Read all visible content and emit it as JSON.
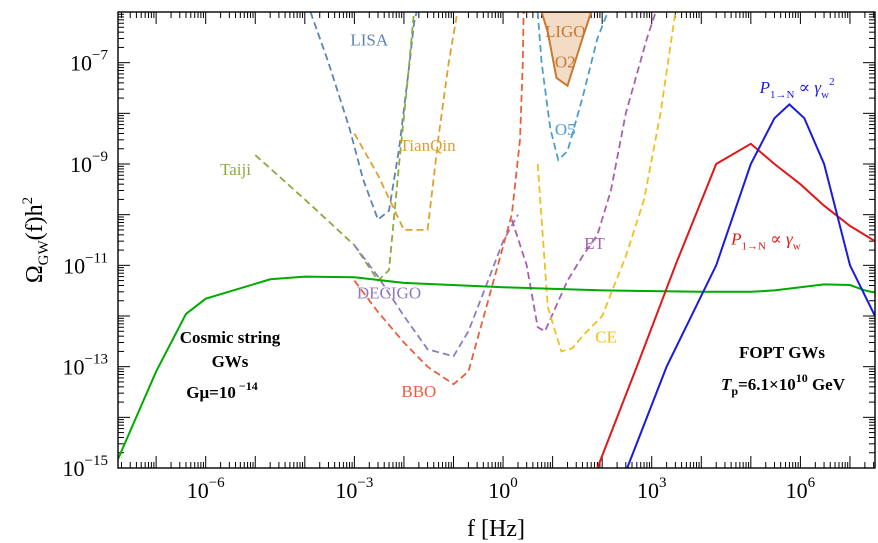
{
  "chart_data": {
    "type": "line",
    "xlabel": "f [Hz]",
    "ylabel_main": "Ω",
    "ylabel_sub": "GW",
    "ylabel_tail": "(f)h",
    "ylabel_sup": "2",
    "x_scale": "log",
    "y_scale": "log",
    "xlim": [
      1.7e-08,
      32000000.0
    ],
    "ylim": [
      1e-15,
      1e-06
    ],
    "x_ticks": [
      {
        "value": 1e-06,
        "base": "10",
        "exp": "−6"
      },
      {
        "value": 0.001,
        "base": "10",
        "exp": "−3"
      },
      {
        "value": 1,
        "base": "10",
        "exp": "0"
      },
      {
        "value": 1000.0,
        "base": "10",
        "exp": "3"
      },
      {
        "value": 1000000.0,
        "base": "10",
        "exp": "6"
      }
    ],
    "y_ticks": [
      {
        "value": 1e-07,
        "base": "10",
        "exp": "−7"
      },
      {
        "value": 1e-09,
        "base": "10",
        "exp": "−9"
      },
      {
        "value": 1e-11,
        "base": "10",
        "exp": "−11"
      },
      {
        "value": 1e-13,
        "base": "10",
        "exp": "−13"
      },
      {
        "value": 1e-15,
        "base": "10",
        "exp": "−15"
      }
    ],
    "grid": false,
    "series": [
      {
        "name": "LISA",
        "color": "#5b84b1",
        "dash": true,
        "label_pos": [
          0.002,
          2.2e-07
        ],
        "points": [
          [
            0.00013,
            1e-06
          ],
          [
            0.0003,
            1e-07
          ],
          [
            0.0008,
            5e-09
          ],
          [
            0.0015,
            5e-10
          ],
          [
            0.003,
            8e-11
          ],
          [
            0.005,
            1.2e-10
          ],
          [
            0.008,
            2e-09
          ],
          [
            0.013,
            1e-07
          ],
          [
            0.016,
            6e-07
          ],
          [
            0.018,
            1e-06
          ]
        ]
      },
      {
        "name": "TianQin",
        "color": "#e0a030",
        "dash": true,
        "label_pos": [
          0.03,
          1.8e-09
        ],
        "points": [
          [
            0.001,
            4e-09
          ],
          [
            0.003,
            6e-10
          ],
          [
            0.01,
            5e-11
          ],
          [
            0.03,
            5e-11
          ],
          [
            0.05,
            3.5e-09
          ],
          [
            0.08,
            1e-07
          ],
          [
            0.12,
            1e-06
          ]
        ]
      },
      {
        "name": "Taiji",
        "color": "#8cab3c",
        "dash": true,
        "label_pos": [
          4e-06,
          6e-10
        ],
        "points": [
          [
            1e-05,
            1.5e-09
          ],
          [
            0.0001,
            2e-10
          ],
          [
            0.001,
            2.5e-11
          ],
          [
            0.003,
            5e-12
          ],
          [
            0.005,
            8e-12
          ],
          [
            0.008,
            1e-09
          ],
          [
            0.012,
            5e-08
          ],
          [
            0.016,
            1e-06
          ]
        ]
      },
      {
        "name": "DECIGO",
        "color": "#8f7cc0",
        "dash": true,
        "label_pos": [
          0.005,
          2.2e-12
        ],
        "points": [
          [
            0.001,
            2.5e-11
          ],
          [
            0.003,
            6e-12
          ],
          [
            0.01,
            1e-12
          ],
          [
            0.03,
            2.2e-13
          ],
          [
            0.1,
            1.6e-13
          ],
          [
            0.2,
            5e-13
          ],
          [
            0.5,
            5e-12
          ],
          [
            1,
            3e-11
          ],
          [
            2,
            1e-10
          ]
        ]
      },
      {
        "name": "BBO",
        "color": "#e8603a",
        "dash": true,
        "label_pos": [
          0.02,
          2.5e-14
        ],
        "points": [
          [
            0.001,
            5e-12
          ],
          [
            0.003,
            1.2e-12
          ],
          [
            0.01,
            3e-13
          ],
          [
            0.03,
            1e-13
          ],
          [
            0.1,
            4.5e-14
          ],
          [
            0.2,
            8e-14
          ],
          [
            0.5,
            2e-12
          ],
          [
            1.5,
            1e-10
          ],
          [
            2.2,
            3e-09
          ],
          [
            2.5,
            1e-07
          ],
          [
            2.6,
            1e-06
          ]
        ]
      },
      {
        "name": "ET",
        "color": "#a85fb0",
        "dash": true,
        "label_pos": [
          70,
          2.1e-11
        ],
        "points": [
          [
            1.5,
            8e-11
          ],
          [
            3,
            1e-11
          ],
          [
            5,
            6e-13
          ],
          [
            7,
            5e-13
          ],
          [
            20,
            5e-12
          ],
          [
            40,
            1.5e-11
          ],
          [
            80,
            4e-11
          ],
          [
            150,
            3e-10
          ],
          [
            300,
            1e-08
          ],
          [
            800,
            3e-07
          ],
          [
            1200,
            1e-06
          ]
        ]
      },
      {
        "name": "CE",
        "color": "#f0c020",
        "dash": true,
        "label_pos": [
          120,
          3e-13
        ],
        "points": [
          [
            5,
            1e-09
          ],
          [
            8,
            1.5e-12
          ],
          [
            15,
            2e-13
          ],
          [
            25,
            2.3e-13
          ],
          [
            40,
            4e-13
          ],
          [
            100,
            1e-12
          ],
          [
            300,
            1.5e-11
          ],
          [
            700,
            2e-10
          ],
          [
            1500,
            1e-08
          ],
          [
            3000,
            1e-06
          ]
        ]
      },
      {
        "name": "O5",
        "color": "#4e9ec8",
        "dash": true,
        "label_pos": [
          18,
          3.7e-09
        ],
        "points": [
          [
            5,
            1e-06
          ],
          [
            6,
            1e-07
          ],
          [
            9,
            5e-09
          ],
          [
            13,
            1.2e-09
          ],
          [
            20,
            1.8e-09
          ],
          [
            40,
            2e-08
          ],
          [
            80,
            3e-07
          ],
          [
            130,
            1e-06
          ]
        ]
      }
    ],
    "ligo_o2": {
      "name_line1": "LIGO",
      "name_line2": "O2",
      "edge_color": "#c87830",
      "fill_color": "#f2dcc6",
      "points": [
        [
          6,
          1e-06
        ],
        [
          8,
          4e-07
        ],
        [
          12,
          5e-08
        ],
        [
          20,
          3.5e-08
        ],
        [
          40,
          3e-07
        ],
        [
          60,
          1e-06
        ]
      ]
    },
    "cosmic_string": {
      "color": "#00aa00",
      "label_line1": "Cosmic string",
      "label_line2": "GWs",
      "label_line3": "Gμ=10",
      "label_exp": " −14",
      "points": [
        [
          1.7e-08,
          1.5e-15
        ],
        [
          1e-07,
          8e-14
        ],
        [
          4e-07,
          1.1e-12
        ],
        [
          1e-06,
          2.2e-12
        ],
        [
          2e-05,
          5.3e-12
        ],
        [
          0.0001,
          6e-12
        ],
        [
          0.001,
          5.8e-12
        ],
        [
          0.01,
          4.5e-12
        ],
        [
          1,
          3.7e-12
        ],
        [
          100.0,
          3.2e-12
        ],
        [
          10000.0,
          3e-12
        ],
        [
          100000.0,
          3e-12
        ],
        [
          300000.0,
          3.2e-12
        ],
        [
          1000000.0,
          3.7e-12
        ],
        [
          3000000.0,
          4.2e-12
        ],
        [
          10000000.0,
          4.1e-12
        ],
        [
          20000000.0,
          3.2e-12
        ],
        [
          32000000.0,
          2.9e-12
        ]
      ]
    },
    "fopt_red": {
      "color": "#e01818",
      "label": "P",
      "label_sub": "1→N",
      "label_rest": " ∝ γ",
      "label_rest_sub": "w",
      "label_pos": [
        40000.0,
        2.6e-11
      ],
      "points": [
        [
          80,
          1e-15
        ],
        [
          500,
          1e-13
        ],
        [
          3000,
          1e-11
        ],
        [
          20000.0,
          1e-09
        ],
        [
          100000.0,
          2.5e-09
        ],
        [
          300000.0,
          1e-09
        ],
        [
          1000000.0,
          4e-10
        ],
        [
          3000000.0,
          1.5e-10
        ],
        [
          10000000.0,
          6e-11
        ],
        [
          32000000.0,
          3e-11
        ]
      ]
    },
    "fopt_blue": {
      "color": "#1a1ae0",
      "label": "P",
      "label_sub": "1→N",
      "label_rest": " ∝ γ",
      "label_rest_sub": "w",
      "label_sup": "2",
      "label_pos": [
        150000.0,
        2.5e-08
      ],
      "points": [
        [
          320,
          1e-15
        ],
        [
          2000.0,
          1e-13
        ],
        [
          20000.0,
          1e-11
        ],
        [
          100000.0,
          1e-09
        ],
        [
          300000.0,
          8e-09
        ],
        [
          600000.0,
          1.5e-08
        ],
        [
          1200000.0,
          8e-09
        ],
        [
          3000000.0,
          1e-09
        ],
        [
          10000000.0,
          1e-11
        ],
        [
          32000000.0,
          1e-12
        ]
      ]
    },
    "fopt_label": {
      "line1": "FOPT GWs",
      "line2_main": "T",
      "line2_sub": "p",
      "line2_rest": "=6.1×10",
      "line2_exp": "10",
      "line2_unit": " GeV"
    }
  }
}
